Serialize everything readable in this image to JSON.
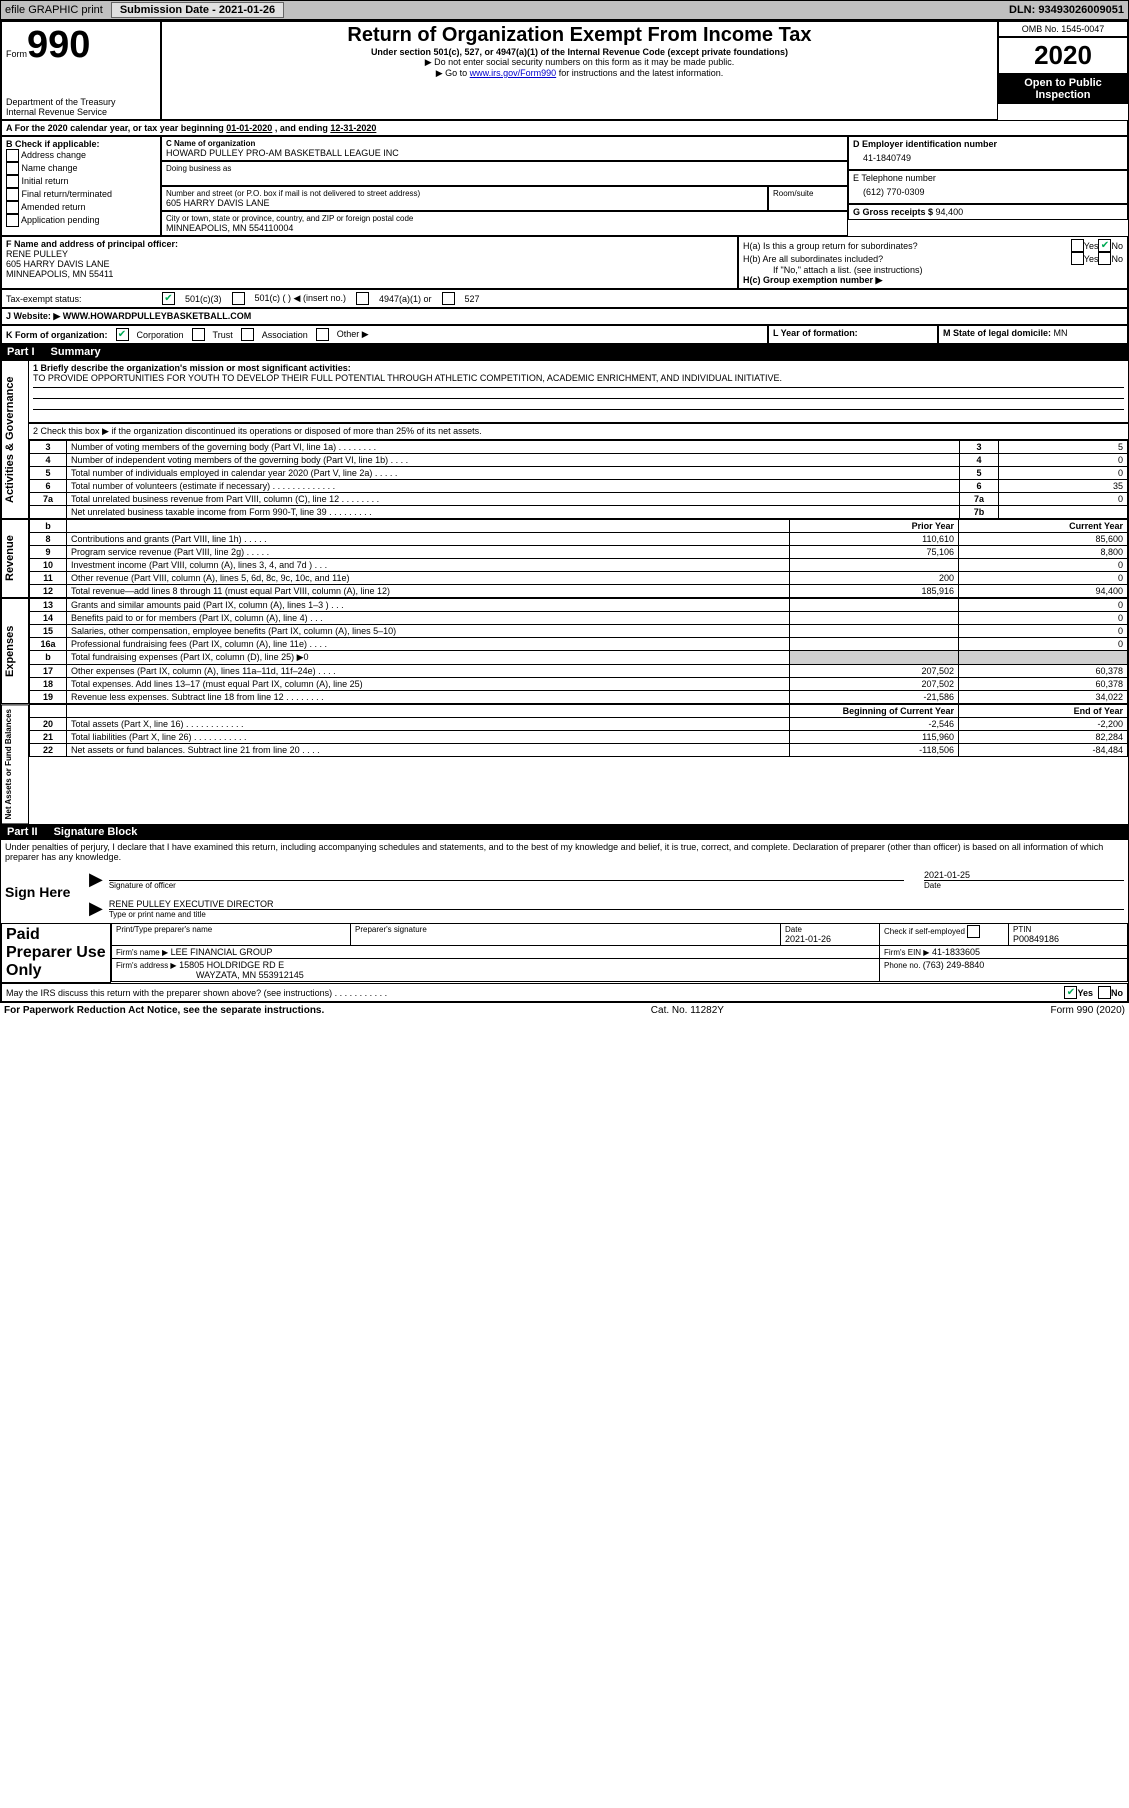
{
  "topbar": {
    "efile": "efile GRAPHIC print",
    "submission_label": "Submission Date - ",
    "submission_date": "2021-01-26",
    "dln_label": "DLN: ",
    "dln": "93493026009051"
  },
  "header": {
    "form_prefix": "Form",
    "form_num": "990",
    "dept": "Department of the Treasury\nInternal Revenue Service",
    "title": "Return of Organization Exempt From Income Tax",
    "sub1": "Under section 501(c), 527, or 4947(a)(1) of the Internal Revenue Code (except private foundations)",
    "sub2": "Do not enter social security numbers on this form as it may be made public.",
    "sub3_pre": "Go to ",
    "sub3_link": "www.irs.gov/Form990",
    "sub3_post": " for instructions and the latest information.",
    "omb": "OMB No. 1545-0047",
    "year": "2020",
    "inspect": "Open to Public Inspection"
  },
  "periodA": {
    "text_pre": "For the 2020 calendar year, or tax year beginning ",
    "begin": "01-01-2020",
    "mid": " , and ending ",
    "end": "12-31-2020"
  },
  "boxB": {
    "label": "B Check if applicable:",
    "items": [
      "Address change",
      "Name change",
      "Initial return",
      "Final return/terminated",
      "Amended return",
      "Application pending"
    ]
  },
  "boxC": {
    "name_label": "C Name of organization",
    "name": "HOWARD PULLEY PRO-AM BASKETBALL LEAGUE INC",
    "dba_label": "Doing business as",
    "addr_label": "Number and street (or P.O. box if mail is not delivered to street address)",
    "room_label": "Room/suite",
    "addr": "605 HARRY DAVIS LANE",
    "city_label": "City or town, state or province, country, and ZIP or foreign postal code",
    "city": "MINNEAPOLIS, MN  554110004"
  },
  "boxD": {
    "label": "D Employer identification number",
    "ein": "41-1840749"
  },
  "boxE": {
    "label": "E Telephone number",
    "phone": "(612) 770-0309"
  },
  "boxG": {
    "label": "G Gross receipts $ ",
    "amount": "94,400"
  },
  "boxF": {
    "label": "F  Name and address of principal officer:",
    "name": "RENE PULLEY",
    "addr1": "605 HARRY DAVIS LANE",
    "addr2": "MINNEAPOLIS, MN  55411"
  },
  "boxH": {
    "a_label": "H(a)  Is this a group return for subordinates?",
    "b_label": "H(b)  Are all subordinates included?",
    "b_note": "If \"No,\" attach a list. (see instructions)",
    "c_label": "H(c)  Group exemption number ▶",
    "yes": "Yes",
    "no": "No",
    "a_no_checked": true
  },
  "taxI": {
    "label": "Tax-exempt status:",
    "opt1": "501(c)(3)",
    "opt1_checked": true,
    "opt2": "501(c) (   ) ◀ (insert no.)",
    "opt3": "4947(a)(1) or",
    "opt4": "527"
  },
  "boxJ": {
    "label": "Website: ▶",
    "val": "WWW.HOWARDPULLEYBASKETBALL.COM"
  },
  "boxK": {
    "label": "K Form of organization:",
    "corp": "Corporation",
    "corp_checked": true,
    "trust": "Trust",
    "assoc": "Association",
    "other": "Other ▶"
  },
  "boxL": {
    "label": "L Year of formation:"
  },
  "boxM": {
    "label": "M State of legal domicile: ",
    "val": "MN"
  },
  "part1": {
    "num": "Part I",
    "title": "Summary",
    "q1_label": "1  Briefly describe the organization's mission or most significant activities:",
    "q1_val": "TO PROVIDE OPPORTUNITIES FOR YOUTH TO DEVELOP THEIR FULL POTENTIAL THROUGH ATHLETIC COMPETITION, ACADEMIC ENRICHMENT, AND INDIVIDUAL INITIATIVE.",
    "q2": "2  Check this box ▶          if the organization discontinued its operations or disposed of more than 25% of its net assets.",
    "sideA": "Activities & Governance",
    "sideR": "Revenue",
    "sideE": "Expenses",
    "sideN": "Net Assets or Fund Balances",
    "col_prior": "Prior Year",
    "col_curr": "Current Year",
    "col_boy": "Beginning of Current Year",
    "col_eoy": "End of Year",
    "lines_gov": [
      {
        "n": "3",
        "t": "Number of voting members of the governing body (Part VI, line 1a)   .    .    .    .    .    .    .    .",
        "box": "3",
        "v": "5"
      },
      {
        "n": "4",
        "t": "Number of independent voting members of the governing body (Part VI, line 1b)   .    .    .    .",
        "box": "4",
        "v": "0"
      },
      {
        "n": "5",
        "t": "Total number of individuals employed in calendar year 2020 (Part V, line 2a)   .    .    .    .    .",
        "box": "5",
        "v": "0"
      },
      {
        "n": "6",
        "t": "Total number of volunteers (estimate if necessary)    .    .    .    .    .    .    .    .    .    .    .    .    .",
        "box": "6",
        "v": "35"
      },
      {
        "n": "7a",
        "t": "Total unrelated business revenue from Part VIII, column (C), line 12   .    .    .    .    .    .    .    .",
        "box": "7a",
        "v": "0"
      },
      {
        "n": "",
        "t": "Net unrelated business taxable income from Form 990-T, line 39    .    .    .    .    .    .    .    .    .",
        "box": "7b",
        "v": ""
      }
    ],
    "lines_rev": [
      {
        "n": "8",
        "t": "Contributions and grants (Part VIII, line 1h)   .    .    .    .    .",
        "p": "110,610",
        "c": "85,600"
      },
      {
        "n": "9",
        "t": "Program service revenue (Part VIII, line 2g)   .    .    .    .    .",
        "p": "75,106",
        "c": "8,800"
      },
      {
        "n": "10",
        "t": "Investment income (Part VIII, column (A), lines 3, 4, and 7d )   .    .    .",
        "p": "",
        "c": "0"
      },
      {
        "n": "11",
        "t": "Other revenue (Part VIII, column (A), lines 5, 6d, 8c, 9c, 10c, and 11e)",
        "p": "200",
        "c": "0"
      },
      {
        "n": "12",
        "t": "Total revenue—add lines 8 through 11 (must equal Part VIII, column (A), line 12)",
        "p": "185,916",
        "c": "94,400"
      }
    ],
    "lines_exp": [
      {
        "n": "13",
        "t": "Grants and similar amounts paid (Part IX, column (A), lines 1–3 )   .    .    .",
        "p": "",
        "c": "0"
      },
      {
        "n": "14",
        "t": "Benefits paid to or for members (Part IX, column (A), line 4)   .    .    .",
        "p": "",
        "c": "0"
      },
      {
        "n": "15",
        "t": "Salaries, other compensation, employee benefits (Part IX, column (A), lines 5–10)",
        "p": "",
        "c": "0"
      },
      {
        "n": "16a",
        "t": "Professional fundraising fees (Part IX, column (A), line 11e)   .    .    .    .",
        "p": "",
        "c": "0"
      },
      {
        "n": "b",
        "t": "Total fundraising expenses (Part IX, column (D), line 25) ▶0",
        "shade": true
      },
      {
        "n": "17",
        "t": "Other expenses (Part IX, column (A), lines 11a–11d, 11f–24e)   .    .    .    .",
        "p": "207,502",
        "c": "60,378"
      },
      {
        "n": "18",
        "t": "Total expenses. Add lines 13–17 (must equal Part IX, column (A), line 25)",
        "p": "207,502",
        "c": "60,378"
      },
      {
        "n": "19",
        "t": "Revenue less expenses. Subtract line 18 from line 12   .    .    .    .    .    .    .    .",
        "p": "-21,586",
        "c": "34,022"
      }
    ],
    "lines_net": [
      {
        "n": "20",
        "t": "Total assets (Part X, line 16)   .    .    .    .    .    .    .    .    .    .    .    .",
        "p": "-2,546",
        "c": "-2,200"
      },
      {
        "n": "21",
        "t": "Total liabilities (Part X, line 26)   .    .    .    .    .    .    .    .    .    .    .",
        "p": "115,960",
        "c": "82,284"
      },
      {
        "n": "22",
        "t": "Net assets or fund balances. Subtract line 21 from line 20   .    .    .    .",
        "p": "-118,506",
        "c": "-84,484"
      }
    ]
  },
  "part2": {
    "num": "Part II",
    "title": "Signature Block",
    "perjury": "Under penalties of perjury, I declare that I have examined this return, including accompanying schedules and statements, and to the best of my knowledge and belief, it is true, correct, and complete. Declaration of preparer (other than officer) is based on all information of which preparer has any knowledge.",
    "sign_here": "Sign Here",
    "sig_officer": "Signature of officer",
    "sig_date_label": "Date",
    "sig_date": "2021-01-25",
    "sig_name": "RENE PULLEY  EXECUTIVE DIRECTOR",
    "sig_name_label": "Type or print name and title",
    "paid": "Paid Preparer Use Only",
    "prep_name_label": "Print/Type preparer's name",
    "prep_sig_label": "Preparer's signature",
    "prep_date_label": "Date",
    "prep_date": "2021-01-26",
    "prep_check": "Check       if self-employed",
    "ptin_label": "PTIN",
    "ptin": "P00849186",
    "firm_name_label": "Firm's name    ▶",
    "firm_name": "LEE FINANCIAL GROUP",
    "firm_ein_label": "Firm's EIN ▶",
    "firm_ein": "41-1833605",
    "firm_addr_label": "Firm's address ▶",
    "firm_addr1": "15805 HOLDRIDGE RD E",
    "firm_addr2": "WAYZATA, MN  553912145",
    "firm_phone_label": "Phone no. ",
    "firm_phone": "(763) 249-8840",
    "discuss": "May the IRS discuss this return with the preparer shown above? (see instructions)    .    .    .    .    .    .    .    .    .    .    .",
    "discuss_yes_checked": true
  },
  "footer": {
    "left": "For Paperwork Reduction Act Notice, see the separate instructions.",
    "mid": "Cat. No. 11282Y",
    "right": "Form 990 (2020)"
  }
}
